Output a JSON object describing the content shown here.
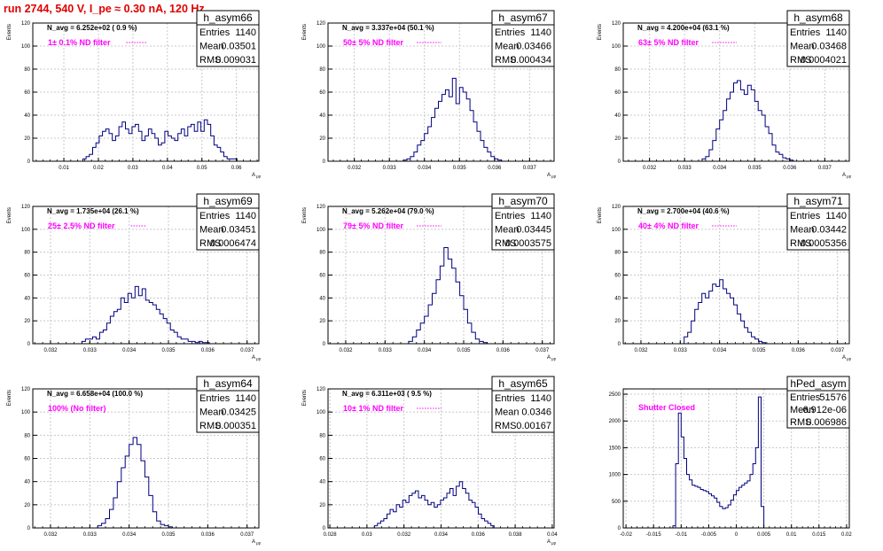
{
  "run_title": "run 2744,   540 V, I_pe ≈ 0.30 nA, 120 Hz",
  "colors": {
    "title": "#e00000",
    "histogram": "#000080",
    "annotation": "#ff00ff",
    "grid": "#c8c8c8"
  },
  "stats_labels": {
    "entries": "Entries",
    "mean": "Mean",
    "rms": "RMS"
  },
  "chart_data": [
    {
      "type": "bar",
      "name": "h_asym66",
      "ylabel": "Events",
      "xlabel": "A_μp",
      "ylim": [
        0,
        120
      ],
      "xlim": [
        0.001,
        0.0665
      ],
      "xticks": [
        "0.01",
        "0.02",
        "0.03",
        "0.04",
        "0.05",
        "0.06"
      ],
      "xtick_values": [
        0.01,
        0.02,
        0.03,
        0.04,
        0.05,
        0.06
      ],
      "yticks": [
        "0",
        "20",
        "40",
        "60",
        "80",
        "100",
        "120"
      ],
      "ytick_values": [
        0,
        20,
        40,
        60,
        80,
        100,
        120
      ],
      "navg": "N_avg = 6.252e+02 ( 0.9 %)",
      "filter": "1± 0.1% ND filter",
      "stats": {
        "entries": "1140",
        "mean": "0.03501",
        "rms": "0.009031"
      },
      "bins_start": 0.0155,
      "bin_width": 0.00095,
      "values": [
        2,
        4,
        6,
        12,
        16,
        22,
        26,
        28,
        24,
        18,
        22,
        30,
        34,
        28,
        24,
        30,
        32,
        26,
        18,
        22,
        28,
        24,
        20,
        14,
        16,
        26,
        22,
        20,
        18,
        24,
        28,
        22,
        30,
        32,
        26,
        34,
        26,
        36,
        32,
        22,
        14,
        12,
        8,
        4,
        2,
        2,
        2
      ]
    },
    {
      "type": "bar",
      "name": "h_asym67",
      "ylabel": "Events",
      "xlabel": "A_μp",
      "ylim": [
        0,
        120
      ],
      "xlim": [
        0.03125,
        0.0377
      ],
      "xticks": [
        "0.032",
        "0.033",
        "0.034",
        "0.035",
        "0.036",
        "0.037"
      ],
      "xtick_values": [
        0.032,
        0.033,
        0.034,
        0.035,
        0.036,
        0.037
      ],
      "yticks": [
        "0",
        "20",
        "40",
        "60",
        "80",
        "100",
        "120"
      ],
      "ytick_values": [
        0,
        20,
        40,
        60,
        80,
        100,
        120
      ],
      "navg": "N_avg = 3.337e+04 (50.1 %)",
      "filter": "50± 5% ND filter",
      "stats": {
        "entries": "1140",
        "mean": "0.03466",
        "rms": "0.000434"
      },
      "bins_start": 0.0334,
      "bin_width": 0.0001,
      "values": [
        1,
        2,
        4,
        8,
        14,
        18,
        24,
        30,
        38,
        46,
        52,
        58,
        62,
        56,
        72,
        50,
        64,
        60,
        54,
        44,
        34,
        26,
        18,
        12,
        8,
        4,
        2,
        1
      ]
    },
    {
      "type": "bar",
      "name": "h_asym68",
      "ylabel": "Events",
      "xlabel": "A_μp",
      "ylim": [
        0,
        120
      ],
      "xlim": [
        0.03125,
        0.0377
      ],
      "xticks": [
        "0.032",
        "0.033",
        "0.034",
        "0.035",
        "0.036",
        "0.037"
      ],
      "xtick_values": [
        0.032,
        0.033,
        0.034,
        0.035,
        0.036,
        0.037
      ],
      "yticks": [
        "0",
        "20",
        "40",
        "60",
        "80",
        "100",
        "120"
      ],
      "ytick_values": [
        0,
        20,
        40,
        60,
        80,
        100,
        120
      ],
      "navg": "N_avg = 4.200e+04 (63.1 %)",
      "filter": "63± 5% ND filter",
      "stats": {
        "entries": "1140",
        "mean": "0.03468",
        "rms": "0.0004021"
      },
      "bins_start": 0.0335,
      "bin_width": 0.0001,
      "values": [
        2,
        4,
        10,
        18,
        28,
        36,
        44,
        54,
        60,
        68,
        70,
        62,
        58,
        66,
        62,
        52,
        44,
        40,
        30,
        24,
        14,
        8,
        6,
        3,
        2,
        1
      ]
    },
    {
      "type": "bar",
      "name": "h_asym69",
      "ylabel": "Events",
      "xlabel": "A_μp",
      "ylim": [
        0,
        120
      ],
      "xlim": [
        0.03155,
        0.0373
      ],
      "xticks": [
        "0.032",
        "0.033",
        "0.034",
        "0.035",
        "0.036",
        "0.037"
      ],
      "xtick_values": [
        0.032,
        0.033,
        0.034,
        0.035,
        0.036,
        0.037
      ],
      "yticks": [
        "0",
        "20",
        "40",
        "60",
        "80",
        "100",
        "120"
      ],
      "ytick_values": [
        0,
        20,
        40,
        60,
        80,
        100,
        120
      ],
      "navg": "N_avg = 1.735e+04 (26.1 %)",
      "filter": "25± 2.5% ND filter",
      "stats": {
        "entries": "1140",
        "mean": "0.03451",
        "rms": "0.0006474"
      },
      "bins_start": 0.0328,
      "bin_width": 9e-05,
      "values": [
        2,
        4,
        4,
        6,
        4,
        10,
        12,
        18,
        24,
        28,
        30,
        40,
        36,
        44,
        40,
        50,
        42,
        48,
        38,
        36,
        34,
        30,
        26,
        22,
        18,
        12,
        10,
        6,
        4,
        4,
        2,
        2,
        1,
        2,
        1,
        1
      ]
    },
    {
      "type": "bar",
      "name": "h_asym70",
      "ylabel": "Events",
      "xlabel": "A_μp",
      "ylim": [
        0,
        120
      ],
      "xlim": [
        0.03155,
        0.0373
      ],
      "xticks": [
        "0.032",
        "0.033",
        "0.034",
        "0.035",
        "0.036",
        "0.037"
      ],
      "xtick_values": [
        0.032,
        0.033,
        0.034,
        0.035,
        0.036,
        0.037
      ],
      "yticks": [
        "0",
        "20",
        "40",
        "60",
        "80",
        "100",
        "120"
      ],
      "ytick_values": [
        0,
        20,
        40,
        60,
        80,
        100,
        120
      ],
      "navg": "N_avg = 5.262e+04 (79.0 %)",
      "filter": "79± 5% ND filter",
      "stats": {
        "entries": "1140",
        "mean": "0.03445",
        "rms": "0.0003575"
      },
      "bins_start": 0.0336,
      "bin_width": 0.0001,
      "values": [
        2,
        6,
        12,
        18,
        24,
        34,
        44,
        56,
        68,
        84,
        74,
        66,
        54,
        42,
        30,
        18,
        10,
        4,
        2,
        1
      ]
    },
    {
      "type": "bar",
      "name": "h_asym71",
      "ylabel": "Events",
      "xlabel": "A_μp",
      "ylim": [
        0,
        120
      ],
      "xlim": [
        0.03155,
        0.0373
      ],
      "xticks": [
        "0.032",
        "0.033",
        "0.034",
        "0.035",
        "0.036",
        "0.037"
      ],
      "xtick_values": [
        0.032,
        0.033,
        0.034,
        0.035,
        0.036,
        0.037
      ],
      "yticks": [
        "0",
        "20",
        "40",
        "60",
        "80",
        "100",
        "120"
      ],
      "ytick_values": [
        0,
        20,
        40,
        60,
        80,
        100,
        120
      ],
      "navg": "N_avg = 2.700e+04 (40.6 %)",
      "filter": "40± 4% ND filter",
      "stats": {
        "entries": "1140",
        "mean": "0.03442",
        "rms": "0.0005356"
      },
      "bins_start": 0.0331,
      "bin_width": 9e-05,
      "values": [
        6,
        10,
        20,
        30,
        36,
        44,
        40,
        46,
        52,
        50,
        56,
        48,
        44,
        40,
        34,
        26,
        20,
        14,
        10,
        6,
        4,
        2,
        1
      ]
    },
    {
      "type": "bar",
      "name": "h_asym64",
      "ylabel": "Events",
      "xlabel": "A_μp",
      "ylim": [
        0,
        120
      ],
      "xlim": [
        0.03155,
        0.0373
      ],
      "xticks": [
        "0.032",
        "0.033",
        "0.034",
        "0.035",
        "0.036",
        "0.037"
      ],
      "xtick_values": [
        0.032,
        0.033,
        0.034,
        0.035,
        0.036,
        0.037
      ],
      "yticks": [
        "0",
        "20",
        "40",
        "60",
        "80",
        "100",
        "120"
      ],
      "ytick_values": [
        0,
        20,
        40,
        60,
        80,
        100,
        120
      ],
      "navg": "N_avg = 6.658e+04 (100.0 %)",
      "filter": "100% (No filter)",
      "stats": {
        "entries": "1140",
        "mean": "0.03425",
        "rms": "0.000351"
      },
      "bins_start": 0.0332,
      "bin_width": 0.0001,
      "values": [
        2,
        4,
        8,
        16,
        26,
        40,
        52,
        62,
        72,
        78,
        72,
        58,
        44,
        28,
        14,
        6,
        3,
        2,
        1
      ]
    },
    {
      "type": "bar",
      "name": "h_asym65",
      "ylabel": "Events",
      "xlabel": "A_μp",
      "ylim": [
        0,
        120
      ],
      "xlim": [
        0.0279,
        0.0401
      ],
      "xticks": [
        "0.028",
        "0.03",
        "0.032",
        "0.034",
        "0.036",
        "0.038",
        "0.04"
      ],
      "xtick_values": [
        0.028,
        0.03,
        0.032,
        0.034,
        0.036,
        0.038,
        0.04
      ],
      "yticks": [
        "0",
        "20",
        "40",
        "60",
        "80",
        "100",
        "120"
      ],
      "ytick_values": [
        0,
        20,
        40,
        60,
        80,
        100,
        120
      ],
      "navg": "N_avg = 6.311e+03 ( 9.5 %)",
      "filter": "10± 1% ND filter",
      "stats": {
        "entries": "1140",
        "mean": "0.0346",
        "rms": "0.00167"
      },
      "bins_start": 0.0304,
      "bin_width": 0.00017,
      "values": [
        2,
        4,
        6,
        8,
        12,
        16,
        14,
        20,
        18,
        24,
        22,
        28,
        30,
        32,
        26,
        28,
        24,
        20,
        22,
        18,
        20,
        24,
        26,
        30,
        34,
        28,
        36,
        40,
        34,
        30,
        24,
        22,
        18,
        12,
        8,
        6,
        4,
        2
      ]
    },
    {
      "type": "bar",
      "name": "hPed_asym",
      "ylabel": "",
      "xlabel": "",
      "ylim": [
        0,
        2600
      ],
      "xlim": [
        -0.0205,
        0.0205
      ],
      "xticks": [
        "-0.02",
        "-0.015",
        "-0.01",
        "-0.005",
        "0",
        "0.005",
        "0.01",
        "0.015",
        "0.02"
      ],
      "xtick_values": [
        -0.02,
        -0.015,
        -0.01,
        -0.005,
        0,
        0.005,
        0.01,
        0.015,
        0.02
      ],
      "yticks": [
        "0",
        "500",
        "1000",
        "1500",
        "2000",
        "2500"
      ],
      "ytick_values": [
        0,
        500,
        1000,
        1500,
        2000,
        2500
      ],
      "navg": "",
      "filter": "Shutter Closed",
      "stats": {
        "entries": "51576",
        "mean": "-6.912e-06",
        "rms": "0.006986"
      },
      "bins_start": -0.0115,
      "bin_width": 0.0005,
      "values": [
        40,
        1200,
        2150,
        1700,
        1300,
        1000,
        900,
        800,
        780,
        760,
        720,
        700,
        680,
        640,
        600,
        560,
        480,
        400,
        360,
        380,
        430,
        520,
        620,
        700,
        760,
        800,
        840,
        880,
        1000,
        1200,
        1500,
        2450,
        400
      ]
    }
  ]
}
